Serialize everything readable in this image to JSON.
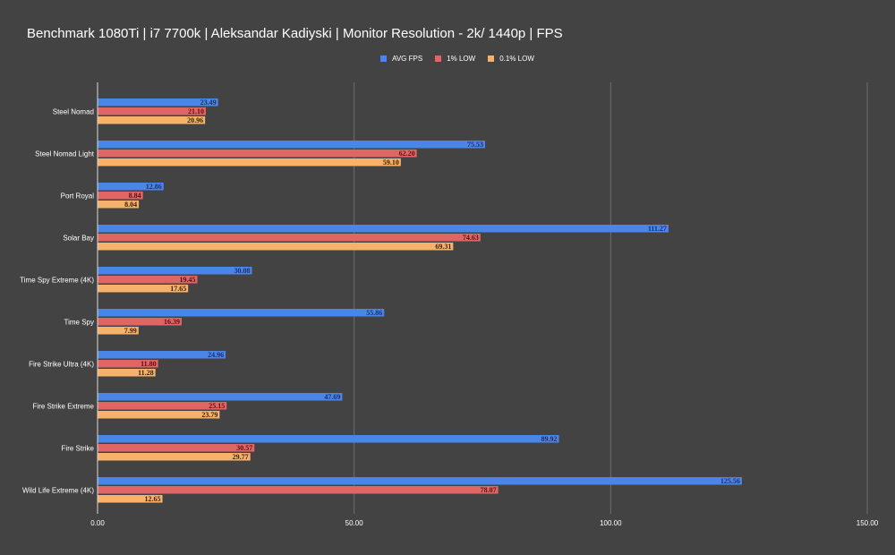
{
  "chart_data": {
    "type": "bar",
    "orientation": "horizontal",
    "title": "Benchmark 1080Ti | i7 7700k | Aleksandar Kadiyski | Monitor Resolution - 2k/ 1440p | FPS",
    "xlabel": "",
    "ylabel": "",
    "xlim": [
      0,
      150
    ],
    "x_ticks": [
      "0.00",
      "50.00",
      "100.00",
      "150.00"
    ],
    "x_tick_values": [
      0,
      50,
      100,
      150
    ],
    "grid": true,
    "legend_position": "top-center",
    "categories": [
      "Steel Nomad",
      "Steel Nomad Light",
      "Port Royal",
      "Solar Bay",
      "Time Spy Extreme (4K)",
      "Time Spy",
      "Fire Strike Ultra (4K)",
      "Fire Strike Extreme",
      "Fire Strike",
      "Wild Life Extreme (4K)"
    ],
    "series": [
      {
        "name": "AVG FPS",
        "color": "#4a86e8",
        "label_color": "#1c2f6b",
        "values": [
          23.49,
          75.53,
          12.86,
          111.27,
          30.08,
          55.86,
          24.96,
          47.69,
          89.92,
          125.56
        ],
        "labels": [
          "23.49",
          "75.53",
          "12.86",
          "111.27",
          "30.08",
          "55.86",
          "24.96",
          "47.69",
          "89.92",
          "125.56"
        ]
      },
      {
        "name": "1% LOW",
        "color": "#e06666",
        "label_color": "#5a1010",
        "values": [
          21.1,
          62.2,
          8.84,
          74.63,
          19.45,
          16.39,
          11.8,
          25.15,
          30.57,
          78.07
        ],
        "labels": [
          "21.10",
          "62.20",
          "8.84",
          "74.63",
          "19.45",
          "16.39",
          "11.80",
          "25.15",
          "30.57",
          "78.07"
        ]
      },
      {
        "name": "0.1% LOW",
        "color": "#f6b26b",
        "label_color": "#3a2208",
        "values": [
          20.96,
          59.1,
          8.04,
          69.31,
          17.65,
          7.99,
          11.28,
          23.79,
          29.77,
          12.65
        ],
        "labels": [
          "20.96",
          "59.10",
          "8.04",
          "69.31",
          "17.65",
          "7.99",
          "11.28",
          "23.79",
          "29.77",
          "12.65"
        ]
      }
    ]
  }
}
